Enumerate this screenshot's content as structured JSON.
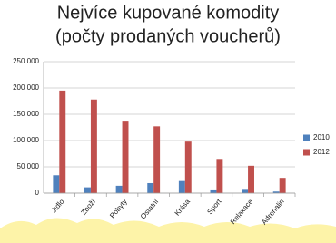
{
  "chart_data": {
    "type": "bar",
    "title": "Nejvíce kupované komodity",
    "subtitle": "(počty prodaných voucherů)",
    "categories": [
      "Jídlo",
      "Zboží",
      "Pobyty",
      "Ostatní",
      "Krása",
      "Sport",
      "Relaxace",
      "Adrenalin"
    ],
    "series": [
      {
        "name": "2010",
        "color": "#4f81bd",
        "values": [
          34000,
          11000,
          14000,
          19000,
          23000,
          7000,
          8000,
          3000
        ]
      },
      {
        "name": "2012",
        "color": "#c0504d",
        "values": [
          195000,
          178000,
          136000,
          127000,
          98000,
          65000,
          52000,
          29000
        ]
      }
    ],
    "ylim": [
      0,
      250000
    ],
    "yticks": [
      0,
      {
        "value": 50000,
        "label": "50 000"
      },
      {
        "value": 100000,
        "label": "100 000"
      },
      {
        "value": 150000,
        "label": "150 000"
      },
      {
        "value": 200000,
        "label": "200 000"
      },
      {
        "value": 250000,
        "label": "250 000"
      }
    ],
    "grid": true,
    "legend": "right"
  }
}
